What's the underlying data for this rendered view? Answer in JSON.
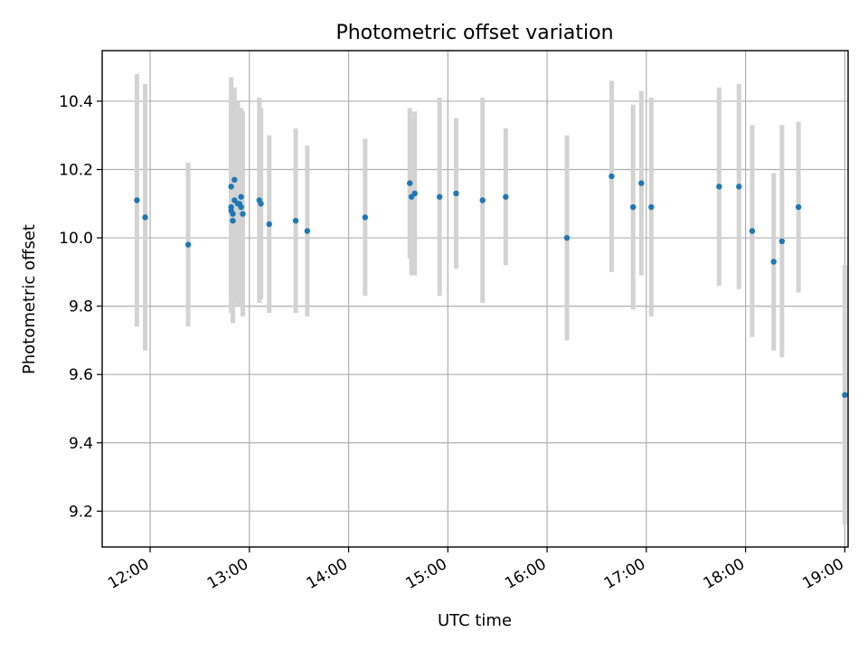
{
  "chart_data": {
    "type": "scatter",
    "title": "Photometric offset variation",
    "xlabel": "UTC time",
    "ylabel": "Photometric offset",
    "x_type": "time",
    "xlim": [
      "11:31",
      "19:02"
    ],
    "ylim": [
      9.095,
      10.548
    ],
    "x_ticks": [
      "12:00",
      "13:00",
      "14:00",
      "15:00",
      "16:00",
      "17:00",
      "18:00",
      "19:00"
    ],
    "y_ticks": [
      "9.2",
      "9.4",
      "9.6",
      "9.8",
      "10.0",
      "10.2",
      "10.4"
    ],
    "grid": true,
    "marker_color": "#1f77b4",
    "errorbar_color": "#d3d3d3",
    "points": [
      {
        "x": "11:52",
        "y": 10.11,
        "yerr": 0.37
      },
      {
        "x": "11:57",
        "y": 10.06,
        "yerr": 0.39
      },
      {
        "x": "12:23",
        "y": 9.98,
        "yerr": 0.24
      },
      {
        "x": "12:49",
        "y": 10.15,
        "yerr": 0.32
      },
      {
        "x": "12:49",
        "y": 10.09,
        "yerr": 0.3
      },
      {
        "x": "12:49",
        "y": 10.08,
        "yerr": 0.3
      },
      {
        "x": "12:50",
        "y": 10.07,
        "yerr": 0.3
      },
      {
        "x": "12:50",
        "y": 10.05,
        "yerr": 0.3
      },
      {
        "x": "12:51",
        "y": 10.11,
        "yerr": 0.3
      },
      {
        "x": "12:51",
        "y": 10.17,
        "yerr": 0.27
      },
      {
        "x": "12:53",
        "y": 10.1,
        "yerr": 0.3
      },
      {
        "x": "12:54",
        "y": 10.1,
        "yerr": 0.27
      },
      {
        "x": "12:55",
        "y": 10.12,
        "yerr": 0.25
      },
      {
        "x": "12:55",
        "y": 10.09,
        "yerr": 0.29
      },
      {
        "x": "12:56",
        "y": 10.07,
        "yerr": 0.3
      },
      {
        "x": "13:06",
        "y": 10.11,
        "yerr": 0.3
      },
      {
        "x": "13:07",
        "y": 10.1,
        "yerr": 0.28
      },
      {
        "x": "13:12",
        "y": 10.04,
        "yerr": 0.26
      },
      {
        "x": "13:28",
        "y": 10.05,
        "yerr": 0.27
      },
      {
        "x": "13:35",
        "y": 10.02,
        "yerr": 0.25
      },
      {
        "x": "14:10",
        "y": 10.06,
        "yerr": 0.23
      },
      {
        "x": "14:37",
        "y": 10.16,
        "yerr": 0.22
      },
      {
        "x": "14:38",
        "y": 10.12,
        "yerr": 0.23
      },
      {
        "x": "14:40",
        "y": 10.13,
        "yerr": 0.24
      },
      {
        "x": "14:55",
        "y": 10.12,
        "yerr": 0.29
      },
      {
        "x": "15:05",
        "y": 10.13,
        "yerr": 0.22
      },
      {
        "x": "15:21",
        "y": 10.11,
        "yerr": 0.3
      },
      {
        "x": "15:35",
        "y": 10.12,
        "yerr": 0.2
      },
      {
        "x": "16:12",
        "y": 10.0,
        "yerr": 0.3
      },
      {
        "x": "16:39",
        "y": 10.18,
        "yerr": 0.28
      },
      {
        "x": "16:52",
        "y": 10.09,
        "yerr": 0.3
      },
      {
        "x": "16:57",
        "y": 10.16,
        "yerr": 0.27
      },
      {
        "x": "17:03",
        "y": 10.09,
        "yerr": 0.32
      },
      {
        "x": "17:44",
        "y": 10.15,
        "yerr": 0.29
      },
      {
        "x": "17:56",
        "y": 10.15,
        "yerr": 0.3
      },
      {
        "x": "18:04",
        "y": 10.02,
        "yerr": 0.31
      },
      {
        "x": "18:17",
        "y": 9.93,
        "yerr": 0.26
      },
      {
        "x": "18:22",
        "y": 9.99,
        "yerr": 0.34
      },
      {
        "x": "18:32",
        "y": 10.09,
        "yerr": 0.25
      },
      {
        "x": "19:00",
        "y": 9.54,
        "yerr": 0.38
      }
    ]
  }
}
